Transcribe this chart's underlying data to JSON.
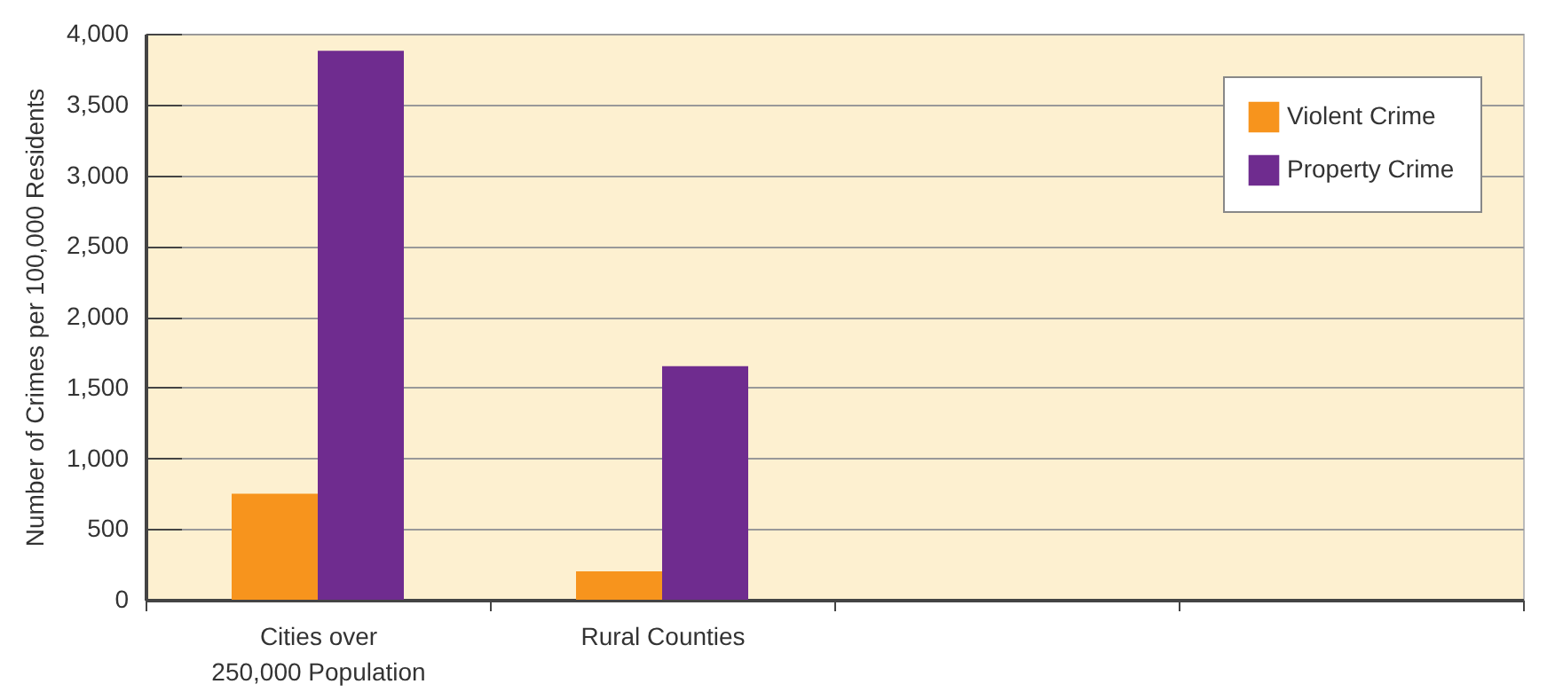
{
  "chart_data": {
    "type": "bar",
    "ylabel": "Number of Crimes per 100,000 Residents",
    "categories": [
      "Cities over 250,000 Population",
      "Rural  Counties",
      null,
      null
    ],
    "series": [
      {
        "name": "Violent Crime",
        "color": "#f7941d",
        "values": [
          750,
          200,
          null,
          null
        ]
      },
      {
        "name": "Property Crime",
        "color": "#6f2c8f",
        "values": [
          3880,
          1650,
          null,
          null
        ]
      }
    ],
    "ylim": [
      0,
      4000
    ],
    "yticks": [
      0,
      500,
      {
        "value": 1000,
        "label": "1,000"
      },
      {
        "value": 1500,
        "label": "1,500"
      },
      {
        "value": 2000,
        "label": "2,000"
      },
      {
        "value": 2500,
        "label": "2,500"
      },
      {
        "value": 3000,
        "label": "3,000"
      },
      {
        "value": 3500,
        "label": "3,500"
      },
      {
        "value": 4000,
        "label": "4,000"
      }
    ],
    "grid": "y",
    "legend": "top right"
  }
}
